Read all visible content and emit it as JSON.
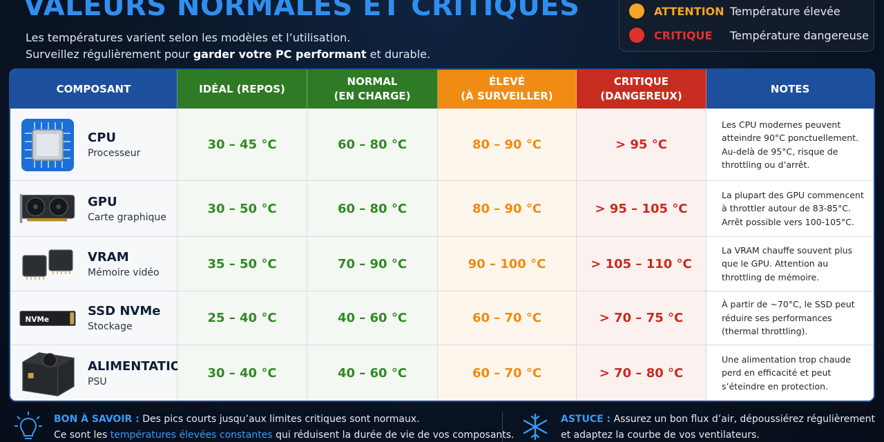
{
  "header": {
    "title": "VALEURS NORMALES ET CRITIQUES",
    "subtitle_line1": "Les températures varient selon les modèles et l’utilisation.",
    "subtitle_line2_pre": "Surveillez régulièrement pour ",
    "subtitle_line2_bold": "garder votre PC performant",
    "subtitle_line2_mid": " et ",
    "subtitle_line2_end": "durable."
  },
  "legend": [
    {
      "name": "ATTENTION",
      "desc": "Température élevée",
      "color": "#f5a623"
    },
    {
      "name": "CRITIQUE",
      "desc": "Température dangereuse",
      "color": "#e0322b"
    }
  ],
  "columns": {
    "component": "COMPOSANT",
    "ideal": "IDÉAL (REPOS)",
    "normal_l1": "NORMAL",
    "normal_l2": "(EN CHARGE)",
    "high_l1": "ÉLEVÉ",
    "high_l2": "(À SURVEILLER)",
    "crit_l1": "CRITIQUE",
    "crit_l2": "(DANGEREUX)",
    "notes": "NOTES"
  },
  "header_colors": {
    "component": "#1c4f9c",
    "ideal": "#2f7a25",
    "normal": "#2f7a25",
    "high": "#f08c14",
    "crit": "#c62d20",
    "notes": "#1c4f9c"
  },
  "rows": [
    {
      "name": "CPU",
      "sub": "Processeur",
      "icon": "cpu-chip-icon",
      "ideal": "30 – 45 °C",
      "normal": "60 – 80 °C",
      "high": "80 – 90 °C",
      "crit": "> 95 °C",
      "notes": [
        "Les CPU modernes peuvent",
        "atteindre 90°C ponctuellement.",
        "Au-delà de 95°C, risque de",
        "throttling ou d’arrêt."
      ]
    },
    {
      "name": "GPU",
      "sub": "Carte graphique",
      "icon": "graphics-card-icon",
      "ideal": "30 – 50 °C",
      "normal": "60 – 80 °C",
      "high": "80 – 90 °C",
      "crit": "> 95 – 105 °C",
      "notes": [
        "La plupart des GPU commencent",
        "à throttler autour de 83-85°C.",
        "Arrêt possible vers 100-105°C."
      ]
    },
    {
      "name": "VRAM",
      "sub": "Mémoire vidéo",
      "icon": "memory-chip-icon",
      "ideal": "35 – 50 °C",
      "normal": "70 – 90 °C",
      "high": "90 – 100 °C",
      "crit": "> 105 – 110 °C",
      "notes": [
        "La VRAM chauffe souvent plus",
        "que le GPU. Attention au",
        "throttling de mémoire."
      ]
    },
    {
      "name": "SSD NVMe",
      "sub": "Stockage",
      "icon": "nvme-ssd-icon",
      "icon_label": "NVMe",
      "ideal": "25 – 40 °C",
      "normal": "40 – 60 °C",
      "high": "60 – 70 °C",
      "crit": "> 70 – 75 °C",
      "notes": [
        "À partir de ~70°C, le SSD peut",
        "réduire ses performances",
        "(thermal throttling)."
      ]
    },
    {
      "name": "ALIMENTATION",
      "sub": "PSU",
      "icon": "power-supply-icon",
      "ideal": "30 – 40 °C",
      "normal": "40 – 60 °C",
      "high": "60 – 70 °C",
      "crit": "> 70 – 80 °C",
      "notes": [
        "Une alimentation trop chaude",
        "perd en efficacité et peut",
        "s’éteindre en protection."
      ]
    }
  ],
  "tips": {
    "left_label": "BON À SAVOIR :",
    "left_l1": " Des pics courts jusqu’aux limites critiques sont normaux.",
    "left_l2_pre": "Ce sont les ",
    "left_l2_hl": "températures élevées constantes",
    "left_l2_post": " qui réduisent la durée de vie de vos composants.",
    "right_label": "ASTUCE :",
    "right_l1": " Assurez un bon flux d’air, dépoussiérez régulièrement",
    "right_l2": "et adaptez la courbe de vos ventilateurs."
  }
}
